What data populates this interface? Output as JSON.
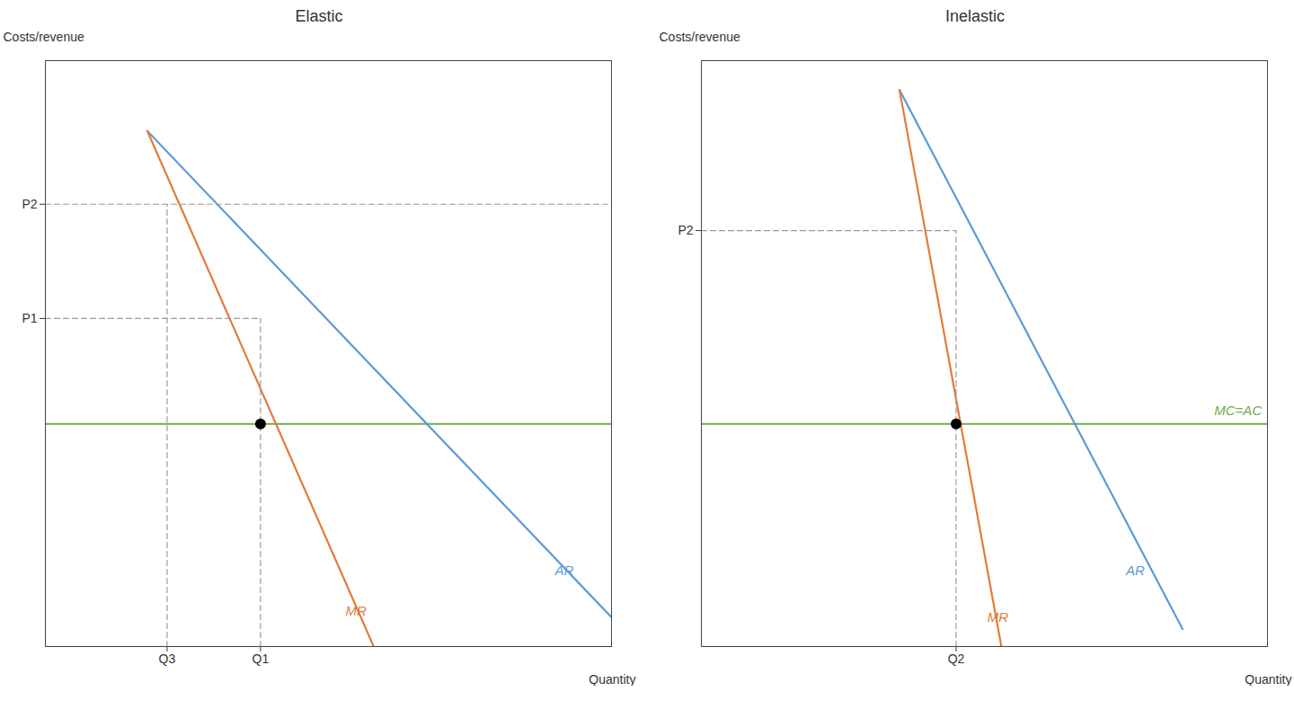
{
  "chart_data": [
    {
      "type": "line",
      "title": "Elastic",
      "xlabel": "Quantity",
      "ylabel": "Costs/revenue",
      "xlim": [
        0,
        10
      ],
      "ylim": [
        0,
        10
      ],
      "xticks": [
        {
          "value": 2.15,
          "label": "Q3"
        },
        {
          "value": 3.8,
          "label": "Q1"
        }
      ],
      "yticks": [
        {
          "value": 7.55,
          "label": "P2"
        },
        {
          "value": 5.6,
          "label": "P1"
        }
      ],
      "grid": false,
      "series": [
        {
          "color": "#70ad47",
          "x": [
            0,
            10
          ],
          "values": [
            3.8,
            3.8
          ]
        },
        {
          "color": "#5b9bd5",
          "x": [
            1.8,
            10.0
          ],
          "values": [
            8.8,
            0.5
          ]
        },
        {
          "color": "#e07b3a",
          "x": [
            1.8,
            5.8
          ],
          "values": [
            8.8,
            0.0
          ]
        },
        {
          "color": "#999999",
          "line_style": "dashed",
          "x": [
            0,
            10
          ],
          "values": [
            7.55,
            7.55
          ]
        },
        {
          "color": "#999999",
          "line_style": "dashed",
          "x": [
            0,
            3.8
          ],
          "values": [
            5.6,
            5.6
          ]
        },
        {
          "color": "#999999",
          "line_style": "dashed",
          "x": [
            2.15,
            2.15
          ],
          "values": [
            0,
            7.55
          ]
        },
        {
          "color": "#999999",
          "line_style": "dashed",
          "x": [
            3.8,
            3.8
          ],
          "values": [
            0,
            5.6
          ]
        },
        {
          "type": "scatter",
          "marker": "circle",
          "color": "#000000",
          "x": [
            3.8
          ],
          "values": [
            3.8
          ]
        }
      ],
      "annotations": [
        {
          "text": "AR",
          "x": 9.0,
          "y": 1.3,
          "color": "#5b9bd5"
        },
        {
          "text": "MR",
          "x": 5.3,
          "y": 0.6,
          "color": "#e07b3a"
        }
      ]
    },
    {
      "type": "line",
      "title": "Inelastic",
      "xlabel": "Quantity",
      "ylabel": "Costs/revenue",
      "xlim": [
        0,
        10
      ],
      "ylim": [
        0,
        10
      ],
      "xticks": [
        {
          "value": 4.5,
          "label": "Q2"
        }
      ],
      "yticks": [
        {
          "value": 7.1,
          "label": "P2"
        }
      ],
      "grid": false,
      "series": [
        {
          "color": "#70ad47",
          "x": [
            0,
            10
          ],
          "values": [
            3.8,
            3.8
          ]
        },
        {
          "color": "#5b9bd5",
          "x": [
            3.5,
            8.5
          ],
          "values": [
            9.5,
            0.3
          ]
        },
        {
          "color": "#e07b3a",
          "x": [
            3.5,
            5.3
          ],
          "values": [
            9.5,
            0.0
          ]
        },
        {
          "color": "#999999",
          "line_style": "dashed",
          "x": [
            0,
            4.5
          ],
          "values": [
            7.1,
            7.1
          ]
        },
        {
          "color": "#999999",
          "line_style": "dashed",
          "x": [
            4.5,
            4.5
          ],
          "values": [
            0,
            7.1
          ]
        },
        {
          "type": "scatter",
          "marker": "circle",
          "color": "#000000",
          "x": [
            4.5
          ],
          "values": [
            3.8
          ]
        }
      ],
      "annotations": [
        {
          "text": "AR",
          "x": 7.5,
          "y": 1.3,
          "color": "#5b9bd5"
        },
        {
          "text": "MR",
          "x": 5.05,
          "y": 0.5,
          "color": "#e07b3a"
        },
        {
          "text": "MC=AC",
          "x": 9.9,
          "y": 3.95,
          "color": "#70ad47",
          "align": "right"
        }
      ]
    }
  ]
}
